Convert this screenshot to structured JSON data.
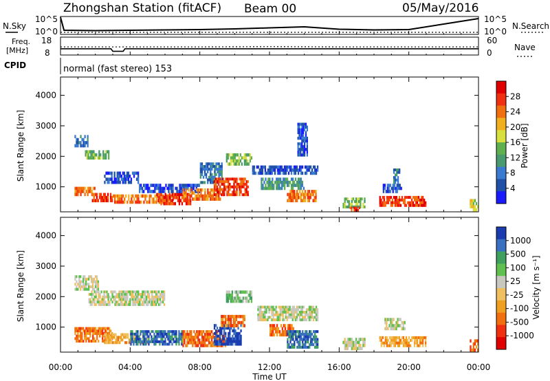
{
  "header": {
    "title": "Zhongshan Station (fitACF)",
    "beam": "Beam 00",
    "date": "05/May/2016",
    "mode": "normal (fast stereo) 153",
    "cpid": "CPID"
  },
  "nsky_panel": {
    "left_label": "N.Sky",
    "right_label": "N.Search",
    "left_ticks": [
      "10^5",
      "10^0"
    ],
    "right_ticks": [
      "10^5",
      "10^0"
    ]
  },
  "freq_panel": {
    "left_label_1": "Freq.",
    "left_label_2": "[MHz]",
    "right_label": "Nave",
    "left_ticks": [
      "18",
      "8"
    ],
    "right_ticks": [
      "60",
      "0"
    ]
  },
  "colors": {
    "power_scale": [
      "#1a1aff",
      "#2050a8",
      "#3a7ad0",
      "#4a9a70",
      "#60b050",
      "#d8e040",
      "#f0b020",
      "#f07010",
      "#f03010",
      "#e00000"
    ],
    "velocity_scale": [
      "#e00000",
      "#f03010",
      "#f07010",
      "#f0a020",
      "#f0c060",
      "#c8c8c0",
      "#60c050",
      "#40a060",
      "#3a70c0",
      "#1a3cb0"
    ]
  },
  "chart_data": [
    {
      "type": "line",
      "name": "nsky-nsearch",
      "x_range": [
        "00:00",
        "24:00"
      ],
      "series": [
        {
          "name": "N.Sky",
          "x": [
            0,
            0.2,
            2,
            4,
            6,
            8,
            10,
            12,
            14,
            16,
            18,
            20,
            22,
            24
          ],
          "y": [
            5.0,
            1.2,
            1.1,
            1.2,
            1.3,
            1.4,
            1.6,
            1.9,
            2.2,
            1.5,
            1.3,
            1.4,
            3.0,
            4.6
          ]
        },
        {
          "name": "N.Search",
          "x": [
            0,
            4,
            8,
            12,
            16,
            20,
            24
          ],
          "y": [
            0.6,
            0.6,
            0.6,
            0.6,
            0.6,
            0.6,
            0.6
          ]
        }
      ]
    },
    {
      "type": "line",
      "name": "freq-nave",
      "x_range": [
        "00:00",
        "24:00"
      ],
      "series": [
        {
          "name": "Freq.",
          "x": [
            0,
            2.9,
            3.0,
            3.6,
            3.7,
            24
          ],
          "y": [
            11.2,
            11.2,
            9.5,
            9.5,
            11.2,
            11.2
          ]
        },
        {
          "name": "Nave",
          "x": [
            0,
            4,
            8,
            12,
            16,
            20,
            24
          ],
          "y": [
            27,
            27,
            27,
            28,
            27,
            27,
            27
          ]
        }
      ]
    },
    {
      "type": "heatmap",
      "name": "power",
      "ylabel": "Slant Range [km]",
      "yticks": [
        1000,
        2000,
        3000,
        4000
      ],
      "ylim": [
        180,
        4600
      ],
      "colorbar_label": "Power [dB]",
      "colorbar_ticks": [
        "28",
        "24",
        "20",
        "16",
        "12",
        "8",
        "4"
      ],
      "regions": [
        {
          "t0": 0.8,
          "t1": 1.6,
          "r0": 2300,
          "r1": 2700,
          "c": 2
        },
        {
          "t0": 1.4,
          "t1": 2.8,
          "r0": 1900,
          "r1": 2200,
          "c": 4
        },
        {
          "t0": 0.8,
          "t1": 2.0,
          "r0": 700,
          "r1": 1000,
          "c": 7
        },
        {
          "t0": 1.8,
          "t1": 3.0,
          "r0": 500,
          "r1": 800,
          "c": 8
        },
        {
          "t0": 2.5,
          "t1": 4.5,
          "r0": 1100,
          "r1": 1500,
          "c": 1
        },
        {
          "t0": 3.0,
          "t1": 6.5,
          "r0": 450,
          "r1": 750,
          "c": 7
        },
        {
          "t0": 5.5,
          "t1": 7.5,
          "r0": 400,
          "r1": 800,
          "c": 8
        },
        {
          "t0": 4.5,
          "t1": 8.0,
          "r0": 800,
          "r1": 1100,
          "c": 1
        },
        {
          "t0": 7.0,
          "t1": 9.2,
          "r0": 550,
          "r1": 950,
          "c": 7
        },
        {
          "t0": 8.0,
          "t1": 9.3,
          "r0": 1100,
          "r1": 1800,
          "c": 2
        },
        {
          "t0": 8.8,
          "t1": 10.8,
          "r0": 700,
          "r1": 1300,
          "c": 8
        },
        {
          "t0": 9.5,
          "t1": 11.0,
          "r0": 1700,
          "r1": 2100,
          "c": 4
        },
        {
          "t0": 11.0,
          "t1": 14.8,
          "r0": 1400,
          "r1": 1700,
          "c": 1
        },
        {
          "t0": 11.5,
          "t1": 14.0,
          "r0": 900,
          "r1": 1300,
          "c": 3
        },
        {
          "t0": 13.0,
          "t1": 14.7,
          "r0": 500,
          "r1": 900,
          "c": 7
        },
        {
          "t0": 13.6,
          "t1": 14.2,
          "r0": 2000,
          "r1": 3100,
          "c": 1
        },
        {
          "t0": 16.2,
          "t1": 17.5,
          "r0": 300,
          "r1": 650,
          "c": 4
        },
        {
          "t0": 16.6,
          "t1": 17.2,
          "r0": 200,
          "r1": 350,
          "c": 8
        },
        {
          "t0": 18.3,
          "t1": 21.0,
          "r0": 350,
          "r1": 700,
          "c": 8
        },
        {
          "t0": 18.5,
          "t1": 19.6,
          "r0": 800,
          "r1": 1100,
          "c": 1
        },
        {
          "t0": 19.1,
          "t1": 19.5,
          "r0": 1100,
          "r1": 1600,
          "c": 2
        },
        {
          "t0": 23.5,
          "t1": 24.0,
          "r0": 200,
          "r1": 600,
          "c": 5
        }
      ]
    },
    {
      "type": "heatmap",
      "name": "velocity",
      "ylabel": "Slant Range [km]",
      "yticks": [
        1000,
        2000,
        3000,
        4000
      ],
      "ylim": [
        180,
        4600
      ],
      "xlabel": "Time UT",
      "xticks": [
        "00:00",
        "04:00",
        "08:00",
        "12:00",
        "16:00",
        "20:00",
        "00:00"
      ],
      "colorbar_label": "Velocity [m s⁻¹]",
      "colorbar_ticks": [
        "1000",
        "500",
        "100",
        "25",
        "-25",
        "-100",
        "-500",
        "-1000"
      ],
      "regions": [
        {
          "t0": 0.8,
          "t1": 2.2,
          "r0": 2200,
          "r1": 2700,
          "c": 5
        },
        {
          "t0": 1.6,
          "t1": 6.0,
          "r0": 1700,
          "r1": 2200,
          "c": 5
        },
        {
          "t0": 0.8,
          "t1": 3.0,
          "r0": 500,
          "r1": 1000,
          "c": 2
        },
        {
          "t0": 2.5,
          "t1": 5.0,
          "r0": 450,
          "r1": 800,
          "c": 3
        },
        {
          "t0": 4.0,
          "t1": 7.0,
          "r0": 400,
          "r1": 900,
          "c": 8
        },
        {
          "t0": 7.0,
          "t1": 9.5,
          "r0": 350,
          "r1": 900,
          "c": 2
        },
        {
          "t0": 8.8,
          "t1": 10.4,
          "r0": 400,
          "r1": 1100,
          "c": 9
        },
        {
          "t0": 9.2,
          "t1": 10.6,
          "r0": 1000,
          "r1": 1400,
          "c": 2
        },
        {
          "t0": 9.5,
          "t1": 11.0,
          "r0": 1800,
          "r1": 2200,
          "c": 6
        },
        {
          "t0": 11.3,
          "t1": 14.8,
          "r0": 1200,
          "r1": 1700,
          "c": 5
        },
        {
          "t0": 12.0,
          "t1": 13.4,
          "r0": 700,
          "r1": 1100,
          "c": 2
        },
        {
          "t0": 13.0,
          "t1": 14.8,
          "r0": 300,
          "r1": 900,
          "c": 8
        },
        {
          "t0": 16.2,
          "t1": 17.5,
          "r0": 250,
          "r1": 650,
          "c": 5
        },
        {
          "t0": 18.3,
          "t1": 21.0,
          "r0": 350,
          "r1": 700,
          "c": 3
        },
        {
          "t0": 18.6,
          "t1": 19.8,
          "r0": 900,
          "r1": 1300,
          "c": 5
        },
        {
          "t0": 23.5,
          "t1": 24.0,
          "r0": 200,
          "r1": 600,
          "c": 2
        }
      ]
    }
  ]
}
